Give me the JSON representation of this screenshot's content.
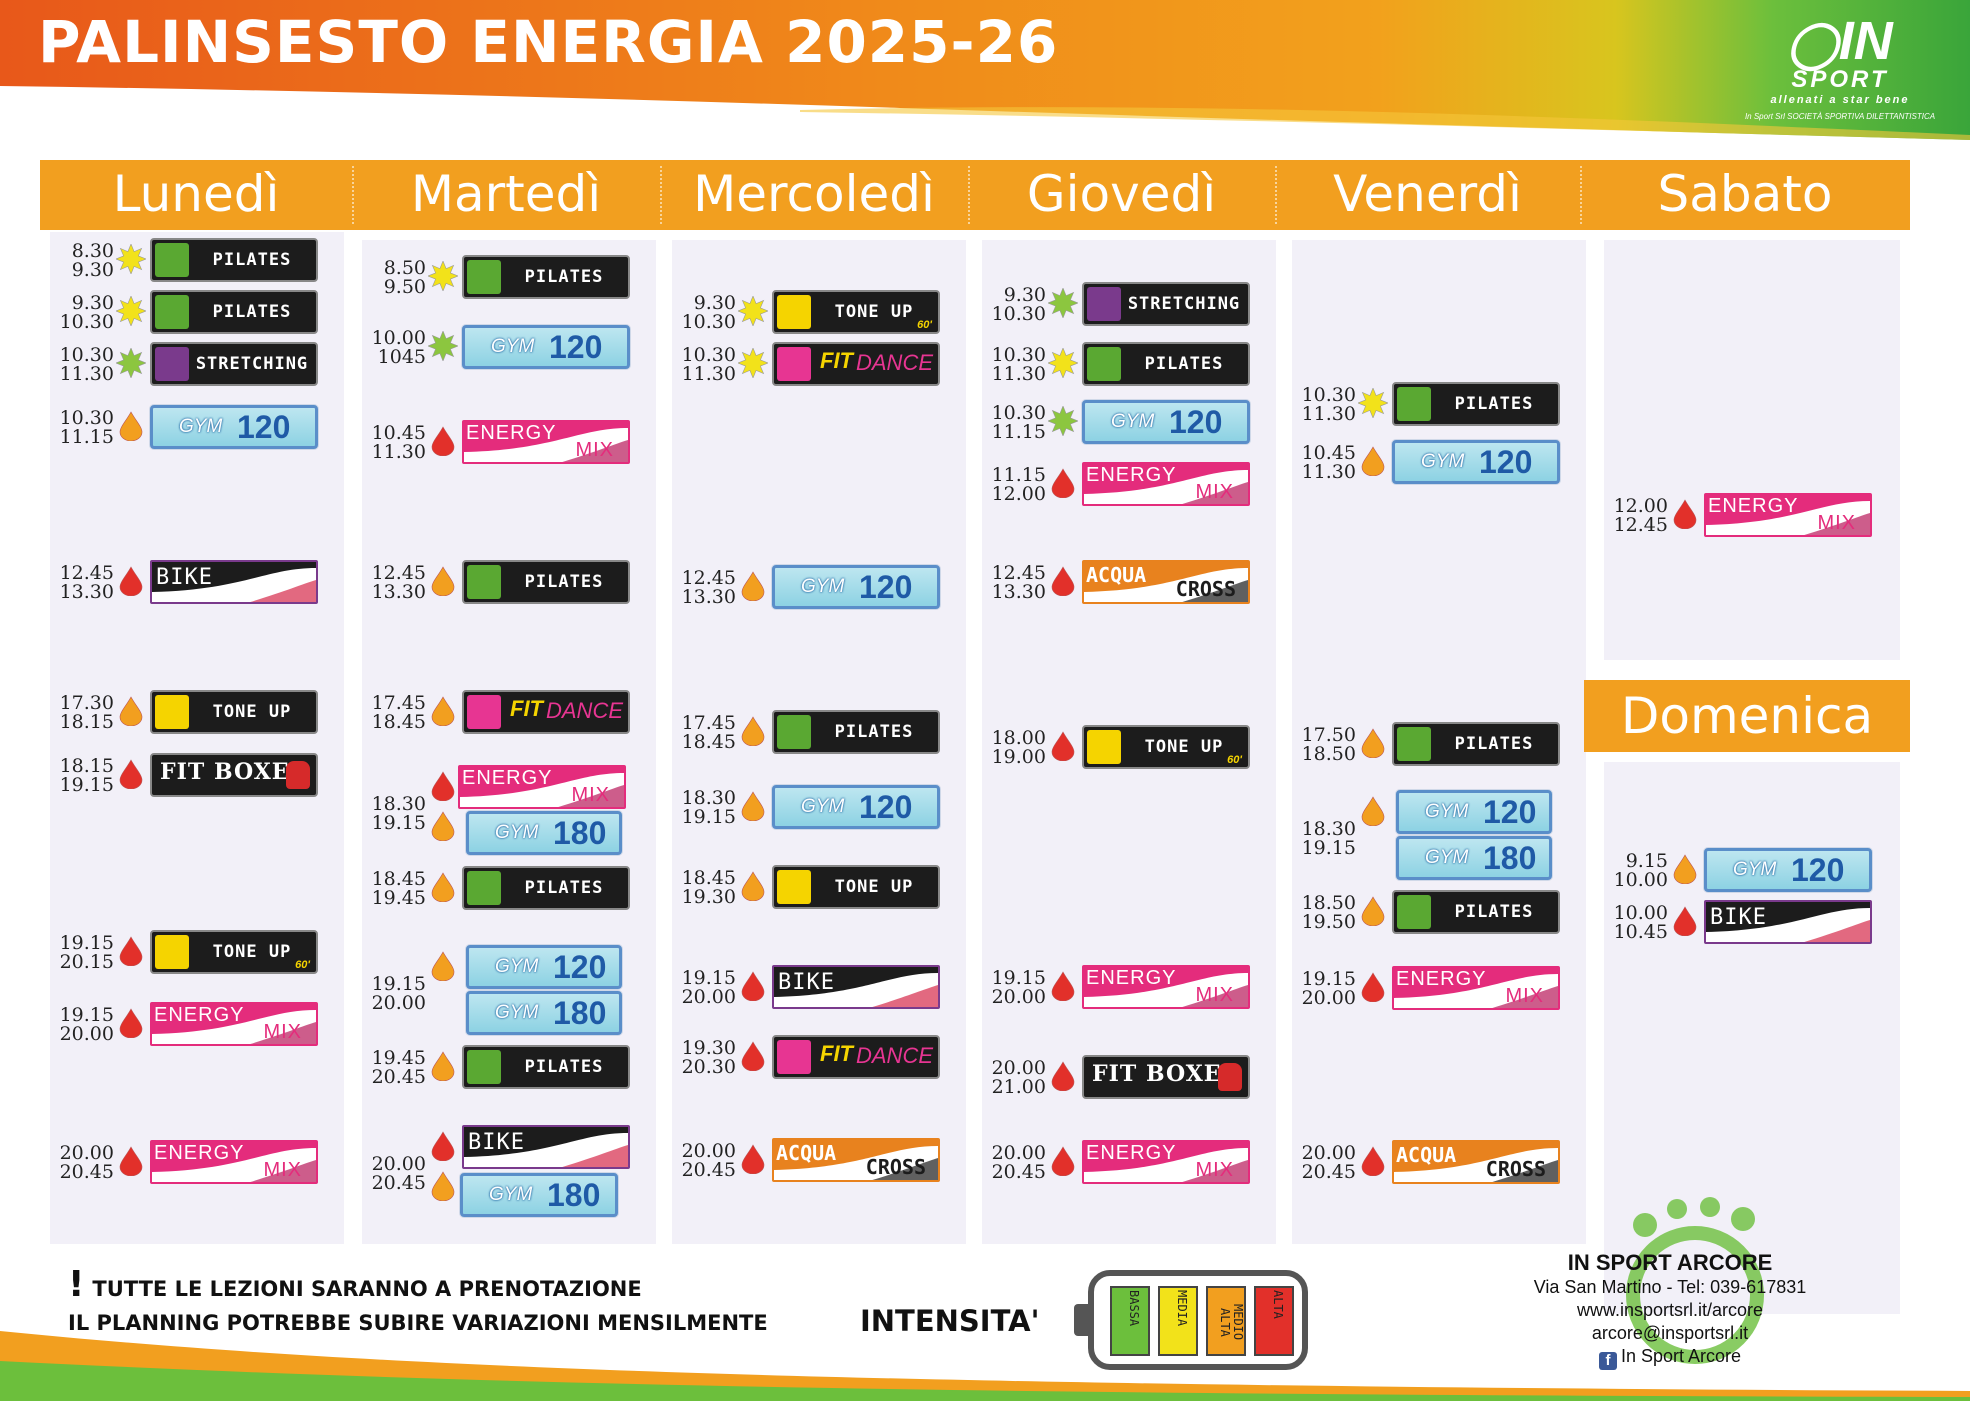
{
  "header": {
    "title": "PALINSESTO ENERGIA 2025-26"
  },
  "logo": {
    "name": "IN",
    "sport": "SPORT",
    "tagline": "allenati a star bene",
    "subtitle": "In Sport Srl SOCIETÀ SPORTIVA DILETTANTISTICA"
  },
  "days": [
    "Lunedì",
    "Martedì",
    "Mercoledì",
    "Giovedì",
    "Venerdì",
    "Sabato",
    "Domenica"
  ],
  "colors": {
    "header_orange": "#f29f1f",
    "column_bg": "#f2f0f8",
    "energy_pink": "#e42c7c"
  },
  "labels": {
    "pilates": "PILATES",
    "stretching": "STRETCHING",
    "tone_up": "TONE UP",
    "tone_up_60": "60'",
    "fit": "FIT",
    "dance": "DANCE",
    "fit_boxe": "FIT BOXE",
    "gym": "GYM",
    "energy": "ENERGY",
    "mix": "MIX",
    "bike": "BIKE",
    "acqua": "ACQUA",
    "cross": "CROSS"
  },
  "schedule": {
    "lunedi": [
      {
        "t1": "8.30",
        "t2": "9.30",
        "intensity": "bassa",
        "class": "PILATES",
        "badge_type": "pilates"
      },
      {
        "t1": "9.30",
        "t2": "10.30",
        "intensity": "bassa",
        "class": "PILATES",
        "badge_type": "pilates"
      },
      {
        "t1": "10.30",
        "t2": "11.30",
        "intensity": "media",
        "class": "STRETCHING",
        "badge_type": "stretching"
      },
      {
        "t1": "10.30",
        "t2": "11.15",
        "intensity": "medio-alta",
        "class": "GYM 120",
        "badge_type": "gym"
      },
      {
        "t1": "12.45",
        "t2": "13.30",
        "intensity": "alta",
        "class": "BIKE",
        "badge_type": "bike"
      },
      {
        "t1": "17.30",
        "t2": "18.15",
        "intensity": "medio-alta",
        "class": "TONE UP",
        "badge_type": "toneup"
      },
      {
        "t1": "18.15",
        "t2": "19.15",
        "intensity": "alta",
        "class": "FIT BOXE",
        "badge_type": "fitboxe"
      },
      {
        "t1": "19.15",
        "t2": "20.15",
        "intensity": "alta",
        "class": "TONE UP 60'",
        "badge_type": "toneup60"
      },
      {
        "t1": "19.15",
        "t2": "20.00",
        "intensity": "alta",
        "class": "ENERGY MIX",
        "badge_type": "energymix"
      },
      {
        "t1": "20.00",
        "t2": "20.45",
        "intensity": "alta",
        "class": "ENERGY MIX",
        "badge_type": "energymix"
      }
    ],
    "martedi": [
      {
        "t1": "8.50",
        "t2": "9.50",
        "intensity": "bassa",
        "class": "PILATES",
        "badge_type": "pilates"
      },
      {
        "t1": "10.00",
        "t2": "1045",
        "intensity": "media",
        "class": "GYM 120",
        "badge_type": "gym"
      },
      {
        "t1": "10.45",
        "t2": "11.30",
        "intensity": "alta",
        "class": "ENERGY MIX",
        "badge_type": "energymix"
      },
      {
        "t1": "12.45",
        "t2": "13.30",
        "intensity": "medio-alta",
        "class": "PILATES",
        "badge_type": "pilates"
      },
      {
        "t1": "17.45",
        "t2": "18.45",
        "intensity": "medio-alta",
        "class": "FIT DANCE",
        "badge_type": "fitdance"
      },
      {
        "t1": "18.30",
        "t2": "19.15",
        "intensity": "alta",
        "class": "ENERGY MIX / GYM 180",
        "badge_type": "energymix+gym"
      },
      {
        "t1": "18.45",
        "t2": "19.45",
        "intensity": "medio-alta",
        "class": "PILATES",
        "badge_type": "pilates"
      },
      {
        "t1": "19.15",
        "t2": "20.00",
        "intensity": "medio-alta",
        "class": "GYM 120 / GYM 180",
        "badge_type": "gym2"
      },
      {
        "t1": "19.45",
        "t2": "20.45",
        "intensity": "medio-alta",
        "class": "PILATES",
        "badge_type": "pilates"
      },
      {
        "t1": "20.00",
        "t2": "20.45",
        "intensity": "alta",
        "class": "BIKE / GYM 180",
        "badge_type": "bike+gym"
      }
    ],
    "mercoledi": [
      {
        "t1": "9.30",
        "t2": "10.30",
        "intensity": "bassa",
        "class": "TONE UP 60'",
        "badge_type": "toneup60"
      },
      {
        "t1": "10.30",
        "t2": "11.30",
        "intensity": "bassa",
        "class": "FIT DANCE",
        "badge_type": "fitdance"
      },
      {
        "t1": "12.45",
        "t2": "13.30",
        "intensity": "medio-alta",
        "class": "GYM 120",
        "badge_type": "gym"
      },
      {
        "t1": "17.45",
        "t2": "18.45",
        "intensity": "medio-alta",
        "class": "PILATES",
        "badge_type": "pilates"
      },
      {
        "t1": "18.30",
        "t2": "19.15",
        "intensity": "medio-alta",
        "class": "GYM 120",
        "badge_type": "gym"
      },
      {
        "t1": "18.45",
        "t2": "19.30",
        "intensity": "medio-alta",
        "class": "TONE UP",
        "badge_type": "toneup"
      },
      {
        "t1": "19.15",
        "t2": "20.00",
        "intensity": "alta",
        "class": "BIKE",
        "badge_type": "bike"
      },
      {
        "t1": "19.30",
        "t2": "20.30",
        "intensity": "alta",
        "class": "FIT DANCE",
        "badge_type": "fitdance"
      },
      {
        "t1": "20.00",
        "t2": "20.45",
        "intensity": "alta",
        "class": "ACQUA CROSS",
        "badge_type": "acquacross"
      }
    ],
    "giovedi": [
      {
        "t1": "9.30",
        "t2": "10.30",
        "intensity": "media",
        "class": "STRETCHING",
        "badge_type": "stretching"
      },
      {
        "t1": "10.30",
        "t2": "11.30",
        "intensity": "bassa",
        "class": "PILATES",
        "badge_type": "pilates"
      },
      {
        "t1": "10.30",
        "t2": "11.15",
        "intensity": "media",
        "class": "GYM 120",
        "badge_type": "gym"
      },
      {
        "t1": "11.15",
        "t2": "12.00",
        "intensity": "alta",
        "class": "ENERGY MIX",
        "badge_type": "energymix"
      },
      {
        "t1": "12.45",
        "t2": "13.30",
        "intensity": "alta",
        "class": "ACQUA CROSS",
        "badge_type": "acquacross"
      },
      {
        "t1": "18.00",
        "t2": "19.00",
        "intensity": "alta",
        "class": "TONE UP 60'",
        "badge_type": "toneup60"
      },
      {
        "t1": "19.15",
        "t2": "20.00",
        "intensity": "alta",
        "class": "ENERGY MIX",
        "badge_type": "energymix"
      },
      {
        "t1": "20.00",
        "t2": "21.00",
        "intensity": "alta",
        "class": "FIT BOXE",
        "badge_type": "fitboxe"
      },
      {
        "t1": "20.00",
        "t2": "20.45",
        "intensity": "alta",
        "class": "ENERGY MIX",
        "badge_type": "energymix"
      }
    ],
    "venerdi": [
      {
        "t1": "10.30",
        "t2": "11.30",
        "intensity": "bassa",
        "class": "PILATES",
        "badge_type": "pilates"
      },
      {
        "t1": "10.45",
        "t2": "11.30",
        "intensity": "medio-alta",
        "class": "GYM 120",
        "badge_type": "gym"
      },
      {
        "t1": "17.50",
        "t2": "18.50",
        "intensity": "medio-alta",
        "class": "PILATES",
        "badge_type": "pilates"
      },
      {
        "t1": "18.30",
        "t2": "19.15",
        "intensity": "medio-alta",
        "class": "GYM 120 / GYM 180",
        "badge_type": "gym2"
      },
      {
        "t1": "18.50",
        "t2": "19.50",
        "intensity": "medio-alta",
        "class": "PILATES",
        "badge_type": "pilates"
      },
      {
        "t1": "19.15",
        "t2": "20.00",
        "intensity": "alta",
        "class": "ENERGY MIX",
        "badge_type": "energymix"
      },
      {
        "t1": "20.00",
        "t2": "20.45",
        "intensity": "alta",
        "class": "ACQUA CROSS",
        "badge_type": "acquacross"
      }
    ],
    "sabato": [
      {
        "t1": "12.00",
        "t2": "12.45",
        "intensity": "alta",
        "class": "ENERGY MIX",
        "badge_type": "energymix"
      }
    ],
    "domenica": [
      {
        "t1": "9.15",
        "t2": "10.00",
        "intensity": "medio-alta",
        "class": "GYM 120",
        "badge_type": "gym"
      },
      {
        "t1": "10.00",
        "t2": "10.45",
        "intensity": "alta",
        "class": "BIKE",
        "badge_type": "bike"
      }
    ]
  },
  "notes": {
    "line1": "TUTTE LE LEZIONI SARANNO A PRENOTAZIONE",
    "line2": "IL PLANNING POTREBBE SUBIRE VARIAZIONI MENSILMENTE"
  },
  "intensity": {
    "label": "INTENSITA'",
    "levels": [
      "BASSA",
      "MEDIA",
      "MEDIO ALTA",
      "ALTA"
    ],
    "level_colors": [
      "#6cbf3c",
      "#f2e21a",
      "#f29f1f",
      "#e2302a"
    ]
  },
  "contact": {
    "name": "IN SPORT ARCORE",
    "address": "Via San Martino - Tel: 039-617831",
    "website": "www.insportsrl.it/arcore",
    "email": "arcore@insportsrl.it",
    "facebook": "In Sport Arcore"
  }
}
